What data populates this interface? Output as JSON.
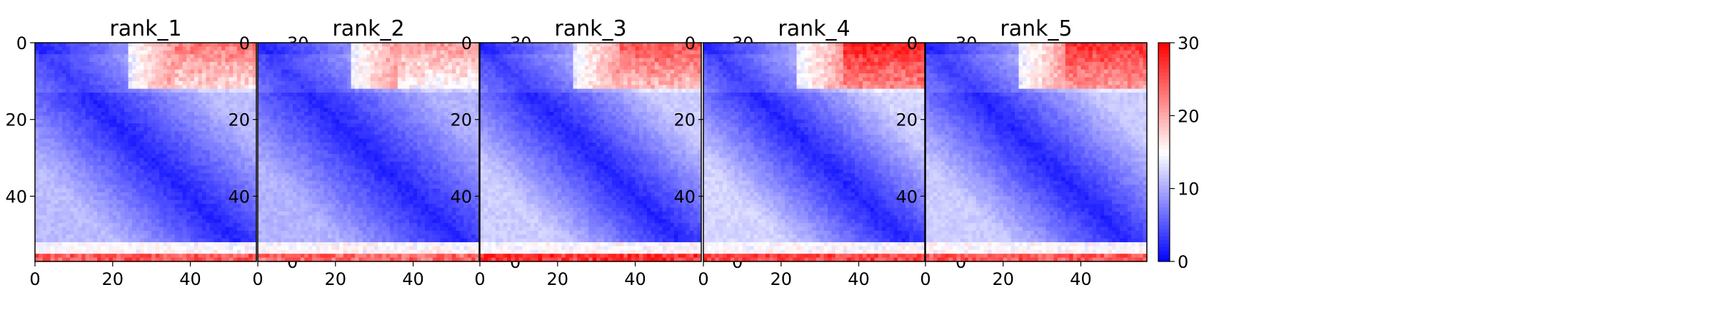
{
  "figure": {
    "background": "#ffffff"
  },
  "chart_data": [
    {
      "type": "heatmap",
      "title": "rank_1",
      "size": 57,
      "xticks": [
        0,
        20,
        40
      ],
      "yticks": [
        0,
        20,
        40
      ],
      "colorbar": {
        "range": [
          0,
          30
        ],
        "ticks": [
          0,
          10,
          20,
          30
        ],
        "colormap": "bwr"
      },
      "estimates": {
        "diag": 2.0,
        "far": 11.0,
        "top_right_block": 23.0,
        "bottom_rows": 25.0
      }
    },
    {
      "type": "heatmap",
      "title": "rank_2",
      "size": 57,
      "xticks": [
        0,
        20,
        40
      ],
      "yticks": [
        0,
        20,
        40
      ],
      "colorbar": {
        "range": [
          0,
          30
        ],
        "ticks": [
          0,
          10,
          20,
          30
        ],
        "colormap": "bwr"
      },
      "estimates": {
        "diag": 2.0,
        "far": 10.5,
        "top_right_block": 21.0,
        "bottom_rows": 24.0
      }
    },
    {
      "type": "heatmap",
      "title": "rank_3",
      "size": 57,
      "xticks": [
        0,
        20,
        40
      ],
      "yticks": [
        0,
        20,
        40
      ],
      "colorbar": {
        "range": [
          0,
          30
        ],
        "ticks": [
          0,
          10,
          20,
          30
        ],
        "colormap": "bwr"
      },
      "estimates": {
        "diag": 2.0,
        "far": 12.0,
        "top_right_block": 25.0,
        "bottom_rows": 27.0
      }
    },
    {
      "type": "heatmap",
      "title": "rank_4",
      "size": 57,
      "xticks": [
        0,
        20,
        40
      ],
      "yticks": [
        0,
        20,
        40
      ],
      "colorbar": {
        "range": [
          0,
          30
        ],
        "ticks": [
          0,
          10,
          20,
          30
        ],
        "colormap": "bwr"
      },
      "estimates": {
        "diag": 2.0,
        "far": 12.5,
        "top_right_block": 28.0,
        "bottom_rows": 26.0
      }
    },
    {
      "type": "heatmap",
      "title": "rank_5",
      "size": 57,
      "xticks": [
        0,
        20,
        40
      ],
      "yticks": [
        0,
        20,
        40
      ],
      "colorbar": {
        "range": [
          0,
          30
        ],
        "ticks": [
          0,
          10,
          20,
          30
        ],
        "colormap": "bwr"
      },
      "estimates": {
        "diag": 2.0,
        "far": 12.0,
        "top_right_block": 27.0,
        "bottom_rows": 25.0
      }
    }
  ]
}
